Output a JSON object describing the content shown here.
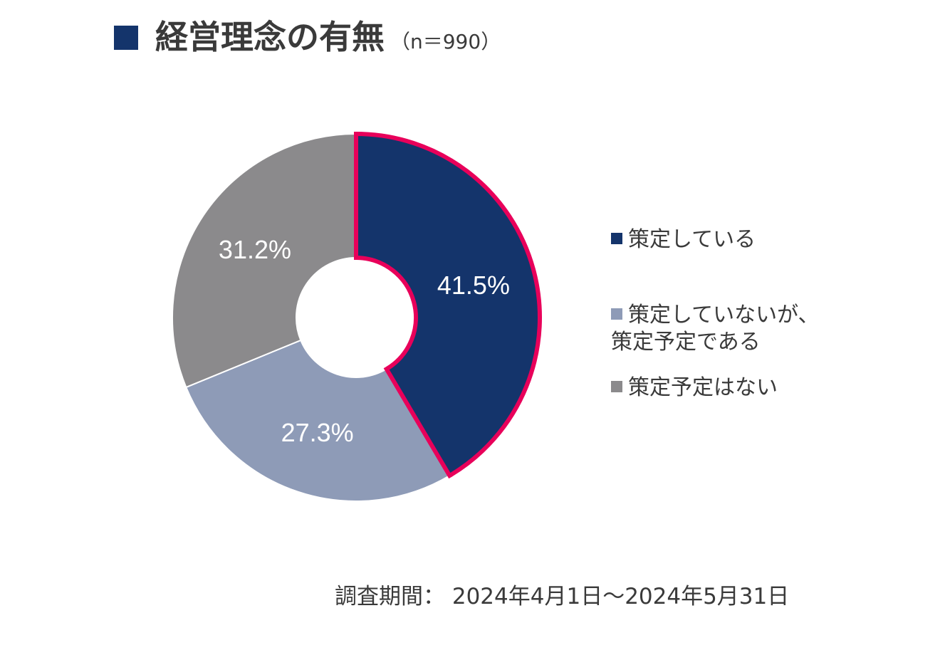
{
  "title": {
    "text": "経営理念の有無",
    "note": "（n＝990）"
  },
  "colors": {
    "title_marker": "#14346b",
    "highlight_outline": "#e8005a"
  },
  "chart_data": {
    "type": "pie",
    "donut": true,
    "categories": [
      "策定している",
      "策定していないが、策定予定である",
      "策定予定はない"
    ],
    "values": [
      41.5,
      27.3,
      31.2
    ],
    "value_labels": [
      "41.5%",
      "27.3%",
      "31.2%"
    ],
    "colors": [
      "#14346b",
      "#8e9bb7",
      "#8b8a8c"
    ],
    "highlighted": "策定している",
    "legend_position": "right"
  },
  "legend": [
    {
      "label": "策定している",
      "color": "#14346b"
    },
    {
      "label": "策定していないが、\n策定予定である",
      "color": "#8e9bb7"
    },
    {
      "label": "策定予定はない",
      "color": "#8b8a8c"
    }
  ],
  "survey_period": "調査期間：  2024年4月1日～2024年5月31日"
}
